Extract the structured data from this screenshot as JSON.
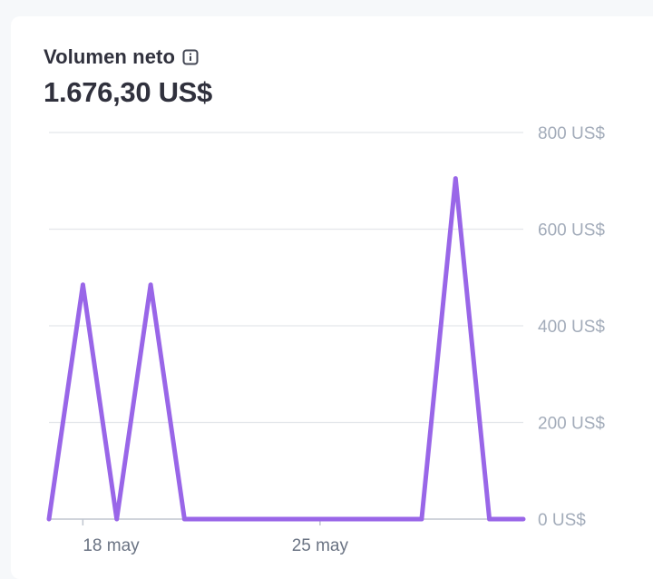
{
  "card": {
    "title": "Volumen neto",
    "total": "1.676,30 US$"
  },
  "icons": {
    "info": "info-icon"
  },
  "colors": {
    "line": "#9966e8",
    "grid": "#e3e6ea",
    "axis": "#a3acba",
    "text": "#30313d"
  },
  "chart_data": {
    "type": "line",
    "x": [
      "17 may",
      "18 may",
      "19 may",
      "20 may",
      "21 may",
      "22 may",
      "23 may",
      "24 may",
      "25 may",
      "26 may",
      "27 may",
      "28 may",
      "29 may",
      "30 may",
      "31 may"
    ],
    "series": [
      {
        "values": [
          0,
          485,
          0,
          485,
          0,
          0,
          0,
          0,
          0,
          0,
          0,
          0,
          705,
          0,
          0
        ]
      }
    ],
    "y_ticks": [
      "0 US$",
      "200 US$",
      "400 US$",
      "600 US$",
      "800 US$"
    ],
    "y_tick_values": [
      0,
      200,
      400,
      600,
      800
    ],
    "x_tick_labels": [
      {
        "x": "18 may",
        "label": "18 may"
      },
      {
        "x": "25 may",
        "label": "25 may"
      }
    ],
    "ylim": [
      0,
      800
    ],
    "grid": true,
    "y_axis_position": "right"
  }
}
